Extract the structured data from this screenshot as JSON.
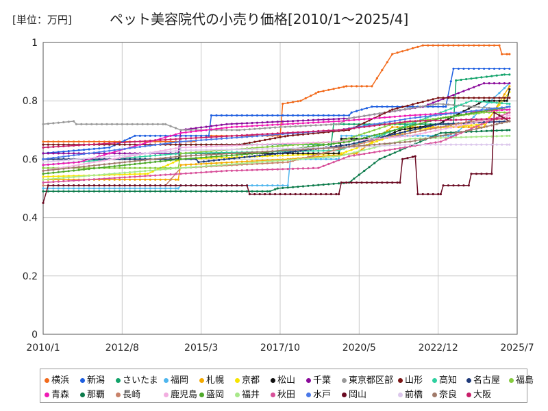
{
  "unit_label": "[単位：万円]",
  "chart_data": {
    "type": "line",
    "title": "ペット美容院代の小売り価格[2010/1～2025/4]",
    "xlabel": "",
    "ylabel": "",
    "ylim": [
      0,
      1
    ],
    "xlim": [
      "2010/1",
      "2025/7"
    ],
    "x_ticks": [
      "2010/1",
      "2012/8",
      "2015/3",
      "2017/10",
      "2020/5",
      "2022/12",
      "2025/7"
    ],
    "y_ticks": [
      "0",
      "0.2",
      "0.4",
      "0.6",
      "0.8",
      "1"
    ],
    "grid": true,
    "legend_position": "bottom",
    "series": [
      {
        "name": "横浜",
        "color": "#f26a1b",
        "points": [
          [
            "2010/1",
            0.66
          ],
          [
            "2015/1",
            0.66
          ],
          [
            "2015/1",
            0.68
          ],
          [
            "2017/10",
            0.68
          ],
          [
            "2017/11",
            0.79
          ],
          [
            "2018/6",
            0.8
          ],
          [
            "2019/1",
            0.83
          ],
          [
            "2019/12",
            0.85
          ],
          [
            "2020/10",
            0.85
          ],
          [
            "2021/6",
            0.96
          ],
          [
            "2022/6",
            0.99
          ],
          [
            "2024/12",
            0.99
          ],
          [
            "2025/1",
            0.96
          ],
          [
            "2025/4",
            0.96
          ]
        ]
      },
      {
        "name": "新潟",
        "color": "#1f5fe0",
        "points": [
          [
            "2010/1",
            0.62
          ],
          [
            "2012/3",
            0.64
          ],
          [
            "2013/1",
            0.68
          ],
          [
            "2015/6",
            0.68
          ],
          [
            "2015/7",
            0.75
          ],
          [
            "2020/1",
            0.75
          ],
          [
            "2020/2",
            0.76
          ],
          [
            "2020/10",
            0.78
          ],
          [
            "2023/3",
            0.78
          ],
          [
            "2023/6",
            0.91
          ],
          [
            "2025/4",
            0.91
          ]
        ]
      },
      {
        "name": "さいたま",
        "color": "#12a36a",
        "points": [
          [
            "2010/1",
            0.6
          ],
          [
            "2014/6",
            0.6
          ],
          [
            "2014/7",
            0.65
          ],
          [
            "2019/6",
            0.65
          ],
          [
            "2019/7",
            0.72
          ],
          [
            "2023/6",
            0.72
          ],
          [
            "2023/7",
            0.87
          ],
          [
            "2025/2",
            0.89
          ],
          [
            "2025/4",
            0.89
          ]
        ]
      },
      {
        "name": "福岡",
        "color": "#4fb6ee",
        "points": [
          [
            "2010/1",
            0.5
          ],
          [
            "2014/6",
            0.5
          ],
          [
            "2014/7",
            0.51
          ],
          [
            "2018/1",
            0.51
          ],
          [
            "2018/2",
            0.6
          ],
          [
            "2019/9",
            0.6
          ],
          [
            "2019/10",
            0.68
          ],
          [
            "2023/6",
            0.68
          ],
          [
            "2025/4",
            0.86
          ]
        ]
      },
      {
        "name": "札幌",
        "color": "#f4aa00",
        "points": [
          [
            "2010/1",
            0.53
          ],
          [
            "2014/6",
            0.53
          ],
          [
            "2014/7",
            0.58
          ],
          [
            "2018/1",
            0.6
          ],
          [
            "2020/4",
            0.62
          ],
          [
            "2021/6",
            0.71
          ],
          [
            "2024/6",
            0.71
          ],
          [
            "2025/4",
            0.85
          ]
        ]
      },
      {
        "name": "京都",
        "color": "#f7e400",
        "points": [
          [
            "2010/1",
            0.54
          ],
          [
            "2013/6",
            0.55
          ],
          [
            "2014/7",
            0.6
          ],
          [
            "2019/10",
            0.62
          ],
          [
            "2022/1",
            0.7
          ],
          [
            "2024/6",
            0.72
          ],
          [
            "2025/4",
            0.83
          ]
        ]
      },
      {
        "name": "松山",
        "color": "#111111",
        "points": [
          [
            "2010/1",
            0.6
          ],
          [
            "2014/6",
            0.6
          ],
          [
            "2014/7",
            0.62
          ],
          [
            "2019/9",
            0.62
          ],
          [
            "2019/10",
            0.67
          ],
          [
            "2021/1",
            0.67
          ],
          [
            "2021/9",
            0.7
          ],
          [
            "2022/12",
            0.72
          ],
          [
            "2024/6",
            0.8
          ],
          [
            "2025/3",
            0.8
          ],
          [
            "2025/4",
            0.84
          ]
        ]
      },
      {
        "name": "千葉",
        "color": "#8a0a9a",
        "points": [
          [
            "2010/1",
            0.62
          ],
          [
            "2014/6",
            0.62
          ],
          [
            "2014/7",
            0.7
          ],
          [
            "2016/1",
            0.72
          ],
          [
            "2020/1",
            0.74
          ],
          [
            "2022/6",
            0.78
          ],
          [
            "2024/6",
            0.86
          ],
          [
            "2025/4",
            0.86
          ]
        ]
      },
      {
        "name": "東京都区部",
        "color": "#999999",
        "points": [
          [
            "2010/1",
            0.72
          ],
          [
            "2011/1",
            0.73
          ],
          [
            "2011/2",
            0.72
          ],
          [
            "2014/1",
            0.72
          ],
          [
            "2014/7",
            0.7
          ],
          [
            "2016/6",
            0.7
          ],
          [
            "2017/10",
            0.71
          ],
          [
            "2019/9",
            0.72
          ],
          [
            "2020/1",
            0.74
          ],
          [
            "2022/12",
            0.79
          ],
          [
            "2025/4",
            0.77
          ]
        ]
      },
      {
        "name": "山形",
        "color": "#7b1515",
        "points": [
          [
            "2010/1",
            0.65
          ],
          [
            "2016/6",
            0.65
          ],
          [
            "2018/1",
            0.68
          ],
          [
            "2020/1",
            0.7
          ],
          [
            "2021/6",
            0.77
          ],
          [
            "2022/12",
            0.81
          ],
          [
            "2025/4",
            0.81
          ]
        ]
      },
      {
        "name": "高知",
        "color": "#2fd0a0",
        "points": [
          [
            "2010/1",
            0.58
          ],
          [
            "2014/7",
            0.62
          ],
          [
            "2019/9",
            0.63
          ],
          [
            "2021/1",
            0.68
          ],
          [
            "2024/1",
            0.8
          ],
          [
            "2025/4",
            0.79
          ]
        ]
      },
      {
        "name": "名古屋",
        "color": "#1f3a7a",
        "points": [
          [
            "2010/1",
            0.6
          ],
          [
            "2015/1",
            0.6
          ],
          [
            "2015/2",
            0.59
          ],
          [
            "2017/10",
            0.62
          ],
          [
            "2020/1",
            0.65
          ],
          [
            "2022/12",
            0.72
          ],
          [
            "2025/4",
            0.73
          ]
        ]
      },
      {
        "name": "福島",
        "color": "#86cc3f",
        "points": [
          [
            "2010/1",
            0.57
          ],
          [
            "2014/6",
            0.57
          ],
          [
            "2014/7",
            0.62
          ],
          [
            "2019/9",
            0.66
          ],
          [
            "2021/6",
            0.72
          ],
          [
            "2024/6",
            0.76
          ],
          [
            "2025/4",
            0.76
          ]
        ]
      },
      {
        "name": "青森",
        "color": "#ef1ab4",
        "points": [
          [
            "2010/1",
            0.58
          ],
          [
            "2011/3",
            0.59
          ],
          [
            "2014/7",
            0.69
          ],
          [
            "2016/3",
            0.71
          ],
          [
            "2019/9",
            0.73
          ],
          [
            "2022/1",
            0.75
          ],
          [
            "2025/4",
            0.77
          ]
        ]
      },
      {
        "name": "那覇",
        "color": "#0b7a4a",
        "points": [
          [
            "2010/1",
            0.49
          ],
          [
            "2017/6",
            0.49
          ],
          [
            "2017/9",
            0.5
          ],
          [
            "2020/1",
            0.52
          ],
          [
            "2021/1",
            0.6
          ],
          [
            "2023/1",
            0.69
          ],
          [
            "2025/4",
            0.7
          ]
        ]
      },
      {
        "name": "長崎",
        "color": "#c8826a",
        "points": [
          [
            "2010/1",
            0.51
          ],
          [
            "2014/1",
            0.51
          ],
          [
            "2014/7",
            0.57
          ],
          [
            "2018/1",
            0.59
          ],
          [
            "2021/1",
            0.67
          ],
          [
            "2024/1",
            0.73
          ],
          [
            "2025/4",
            0.74
          ]
        ]
      },
      {
        "name": "鹿児島",
        "color": "#f2aee0",
        "points": [
          [
            "2010/1",
            0.56
          ],
          [
            "2014/7",
            0.64
          ],
          [
            "2019/9",
            0.66
          ],
          [
            "2022/1",
            0.68
          ],
          [
            "2025/4",
            0.75
          ]
        ]
      },
      {
        "name": "盛岡",
        "color": "#4ea82a",
        "points": [
          [
            "2010/1",
            0.55
          ],
          [
            "2014/7",
            0.6
          ],
          [
            "2017/1",
            0.62
          ],
          [
            "2020/1",
            0.66
          ],
          [
            "2023/1",
            0.74
          ],
          [
            "2025/4",
            0.78
          ]
        ]
      },
      {
        "name": "福井",
        "color": "#a8e88a",
        "points": [
          [
            "2010/1",
            0.53
          ],
          [
            "2014/7",
            0.57
          ],
          [
            "2019/9",
            0.61
          ],
          [
            "2022/1",
            0.67
          ],
          [
            "2025/4",
            0.68
          ]
        ]
      },
      {
        "name": "秋田",
        "color": "#d8509a",
        "points": [
          [
            "2010/1",
            0.52
          ],
          [
            "2014/7",
            0.55
          ],
          [
            "2016/1",
            0.56
          ],
          [
            "2019/1",
            0.57
          ],
          [
            "2020/1",
            0.61
          ],
          [
            "2023/1",
            0.66
          ],
          [
            "2025/4",
            0.76
          ]
        ]
      },
      {
        "name": "水戸",
        "color": "#4a78e8",
        "points": [
          [
            "2010/1",
            0.6
          ],
          [
            "2014/7",
            0.66
          ],
          [
            "2019/9",
            0.7
          ],
          [
            "2022/1",
            0.74
          ],
          [
            "2025/4",
            0.78
          ]
        ]
      },
      {
        "name": "岡山",
        "color": "#6a0a22",
        "points": [
          [
            "2010/1",
            0.45
          ],
          [
            "2010/3",
            0.51
          ],
          [
            "2016/9",
            0.51
          ],
          [
            "2016/10",
            0.48
          ],
          [
            "2019/9",
            0.48
          ],
          [
            "2019/10",
            0.52
          ],
          [
            "2021/9",
            0.52
          ],
          [
            "2021/10",
            0.6
          ],
          [
            "2022/3",
            0.61
          ],
          [
            "2022/4",
            0.48
          ],
          [
            "2023/1",
            0.48
          ],
          [
            "2023/2",
            0.51
          ],
          [
            "2023/12",
            0.51
          ],
          [
            "2024/1",
            0.55
          ],
          [
            "2024/9",
            0.55
          ],
          [
            "2024/10",
            0.76
          ],
          [
            "2025/4",
            0.73
          ]
        ]
      },
      {
        "name": "前橋",
        "color": "#dcc8ec",
        "points": [
          [
            "2010/1",
            0.59
          ],
          [
            "2014/7",
            0.63
          ],
          [
            "2019/9",
            0.64
          ],
          [
            "2022/1",
            0.65
          ],
          [
            "2025/4",
            0.65
          ]
        ]
      },
      {
        "name": "奈良",
        "color": "#a07a6a",
        "points": [
          [
            "2010/1",
            0.56
          ],
          [
            "2014/7",
            0.61
          ],
          [
            "2019/9",
            0.64
          ],
          [
            "2022/1",
            0.66
          ],
          [
            "2024/1",
            0.7
          ],
          [
            "2025/4",
            0.73
          ]
        ]
      },
      {
        "name": "大阪",
        "color": "#c81e6a",
        "points": [
          [
            "2010/1",
            0.64
          ],
          [
            "2014/7",
            0.67
          ],
          [
            "2019/9",
            0.7
          ],
          [
            "2022/1",
            0.73
          ],
          [
            "2025/4",
            0.74
          ]
        ]
      }
    ]
  }
}
